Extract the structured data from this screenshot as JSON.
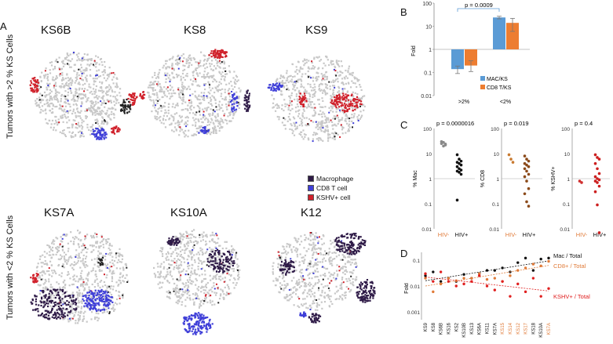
{
  "panel_labels": {
    "a": "A",
    "b": "B",
    "c": "C",
    "d": "D"
  },
  "panel_a": {
    "row_top_label": "Tumors with >2 % KS Cells",
    "row_bottom_label": "Tumors with <2 % KS Cells",
    "titles": [
      "KS6B",
      "KS8",
      "KS9",
      "KS7A",
      "KS10A",
      "K12"
    ],
    "legend": [
      {
        "label": "Macrophage",
        "color": "#2e1a47"
      },
      {
        "label": "CD8 T cell",
        "color": "#3f3fd8"
      },
      {
        "label": "KSHV+ cell",
        "color": "#d0202a"
      }
    ],
    "background_color": "#c8c8c8"
  },
  "chart_data": [
    {
      "type": "bar",
      "panel": "B",
      "ylabel": "Fold",
      "yscale": "log",
      "ylim": [
        0.01,
        100
      ],
      "yticks": [
        "100",
        "10",
        "1",
        "0.1",
        "0.01"
      ],
      "categories": [
        ">2%",
        "<2%"
      ],
      "series": [
        {
          "name": "MAC/KS",
          "color": "#5b9bd5",
          "values": [
            0.14,
            24
          ],
          "err_low": [
            0.09,
            21
          ],
          "err_high": [
            0.19,
            27
          ]
        },
        {
          "name": "CD8 T/KS",
          "color": "#ed7d31",
          "values": [
            0.2,
            14
          ],
          "err_low": [
            0.11,
            6
          ],
          "err_high": [
            0.32,
            22
          ]
        }
      ],
      "annotation": "p = 0.0009"
    },
    {
      "type": "scatter",
      "panel": "C",
      "subplots": [
        {
          "ylabel": "% Mac",
          "pvalue": "p = 0.0000016",
          "groups": [
            "HIV-",
            "HIV+"
          ],
          "hiv_neg": [
            25,
            28,
            22,
            30,
            20,
            24
          ],
          "hiv_pos": [
            9,
            6,
            5,
            4.5,
            4,
            3.5,
            3,
            2.5,
            2.2,
            2,
            1.8,
            1.5,
            0.14
          ]
        },
        {
          "ylabel": "% CD8",
          "pvalue": "p = 0.019",
          "groups": [
            "HIV-",
            "HIV+"
          ],
          "hiv_neg": [
            9,
            6,
            4.5
          ],
          "hiv_pos": [
            8,
            6,
            5,
            4,
            3.5,
            3,
            2.5,
            2,
            1.5,
            1.2,
            0.8,
            0.4,
            0.25,
            0.12,
            0.08
          ]
        },
        {
          "ylabel": "% KSHV+",
          "pvalue": "p = 0.4",
          "groups": [
            "HIV-",
            "HIV+"
          ],
          "hiv_neg": [
            0.8,
            0.7
          ],
          "hiv_pos": [
            9,
            7,
            6,
            4,
            2.5,
            1.6,
            1.2,
            1,
            0.9,
            0.8,
            0.7,
            0.5,
            0.3,
            0.09,
            0.007
          ]
        }
      ],
      "yticks": [
        "100",
        "10",
        "1",
        "0.1",
        "0.01"
      ],
      "colors": {
        "hiv_neg": "#e07b39",
        "hiv_pos": "#111111"
      }
    },
    {
      "type": "scatter",
      "panel": "D",
      "ylabel": "Fold",
      "yscale": "log",
      "ylim": [
        0.0005,
        0.2
      ],
      "yticks": [
        "0.1",
        "0.01",
        "0.001"
      ],
      "categories": [
        "KS9",
        "KS8",
        "KS6B",
        "KS16",
        "KS2",
        "KS10B",
        "KS13",
        "KS6A",
        "KS11",
        "KS7A",
        "KS15",
        "KS14",
        "KS12",
        "KS17",
        "KS18",
        "KS10A",
        "KS7A"
      ],
      "category_colors": [
        "#111",
        "#111",
        "#111",
        "#111",
        "#111",
        "#111",
        "#111",
        "#111",
        "#111",
        "#111",
        "#e07b39",
        "#e07b39",
        "#e07b39",
        "#e07b39",
        "#111",
        "#111",
        "#e07b39"
      ],
      "series": [
        {
          "name": "Mac / Total",
          "color": "#111111",
          "values": [
            0.025,
            0.035,
            0.015,
            0.02,
            0.015,
            0.028,
            0.02,
            0.03,
            0.04,
            0.04,
            0.05,
            0.035,
            0.08,
            0.12,
            0.04,
            0.11,
            0.12
          ]
        },
        {
          "name": "CD8+ / Total",
          "color": "#e07b39",
          "values": [
            0.02,
            0.006,
            0.012,
            0.02,
            0.016,
            0.02,
            0.02,
            0.03,
            0.018,
            0.02,
            0.015,
            0.025,
            0.04,
            0.05,
            0.07,
            0.06,
            0.09
          ]
        },
        {
          "name": "KSHV+ / Total",
          "color": "#e02020",
          "values": [
            0.03,
            0.015,
            0.035,
            0.015,
            0.01,
            0.012,
            0.015,
            0.025,
            0.01,
            0.007,
            0.015,
            0.004,
            0.012,
            0.006,
            0.02,
            0.004,
            0.008
          ]
        }
      ],
      "series_labels": [
        "Mac / Total",
        "CD8+ / Total",
        "KSHV+ / Total"
      ]
    }
  ]
}
